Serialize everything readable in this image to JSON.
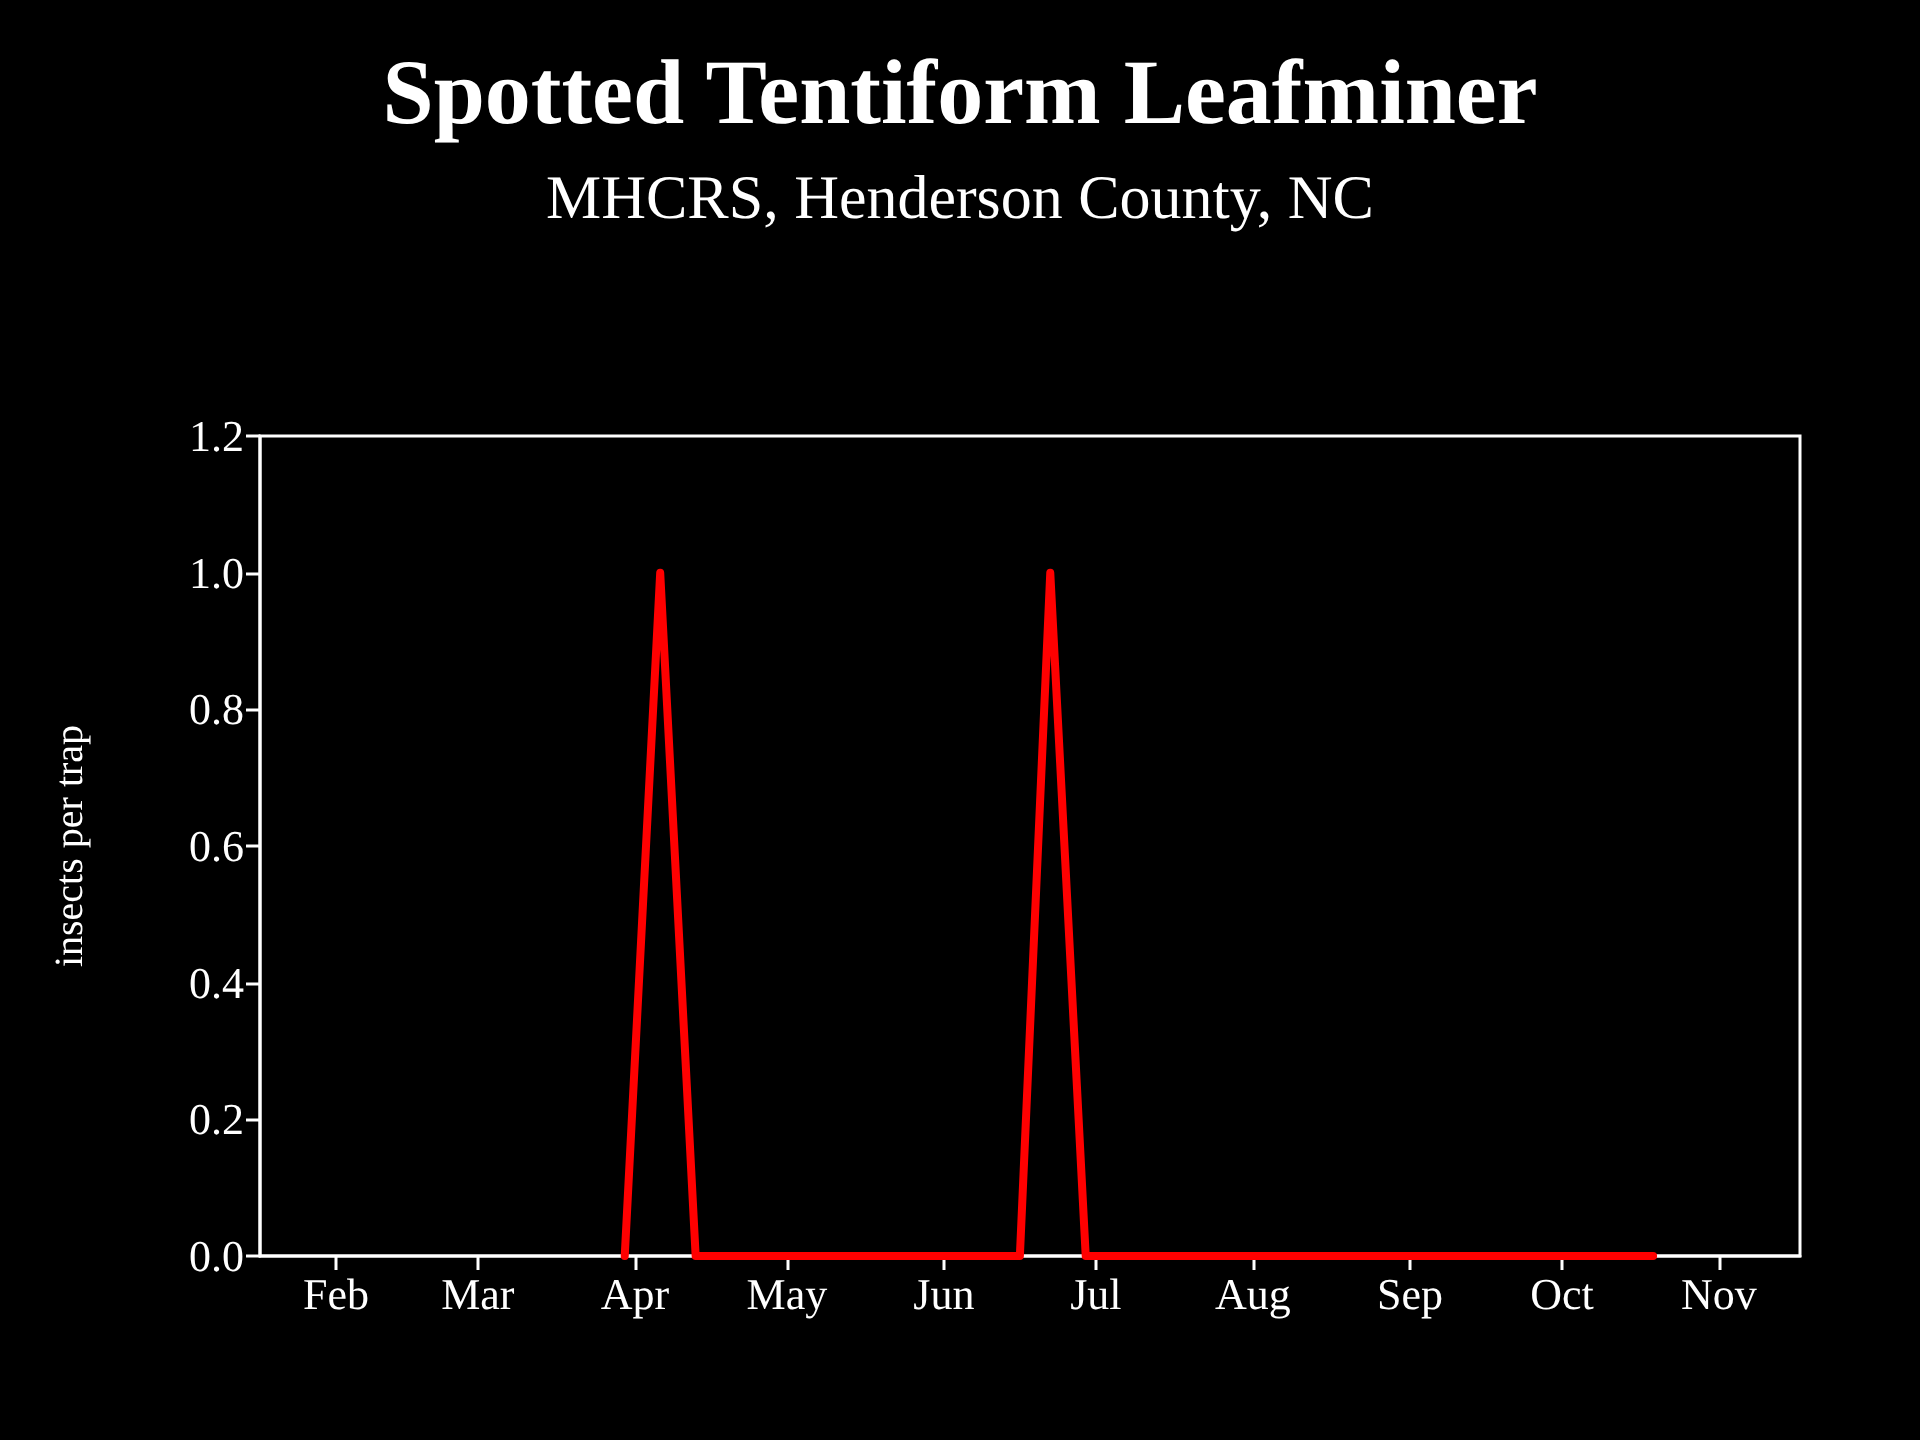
{
  "chart_data": {
    "type": "line",
    "title": "Spotted Tentiform Leafminer",
    "subtitle": "MHCRS, Henderson County, NC",
    "ylabel": "insects per trap",
    "x": [
      "--03-30",
      "--04-06",
      "--04-13",
      "--06-16",
      "--06-22",
      "--06-29",
      "--10-19"
    ],
    "series": [
      {
        "color": "#ff0000",
        "values": [
          0,
          1,
          0,
          0,
          1,
          0,
          0
        ]
      }
    ],
    "xlim": [
      "--01-17",
      "--11-17"
    ],
    "xticks": [
      {
        "value": "--02-01",
        "label": "Feb"
      },
      {
        "value": "--03-01",
        "label": "Mar"
      },
      {
        "value": "--04-01",
        "label": "Apr"
      },
      {
        "value": "--05-01",
        "label": "May"
      },
      {
        "value": "--06-01",
        "label": "Jun"
      },
      {
        "value": "--07-01",
        "label": "Jul"
      },
      {
        "value": "--08-01",
        "label": "Aug"
      },
      {
        "value": "--09-01",
        "label": "Sep"
      },
      {
        "value": "--10-01",
        "label": "Oct"
      },
      {
        "value": "--11-01",
        "label": "Nov"
      }
    ],
    "ylim": [
      0,
      1.2
    ],
    "yticks": [
      {
        "value": 0,
        "label": "0.0"
      },
      {
        "value": 0.2,
        "label": "0.2"
      },
      {
        "value": 0.4,
        "label": "0.4"
      },
      {
        "value": 0.6,
        "label": "0.6"
      },
      {
        "value": 0.8,
        "label": "0.8"
      },
      {
        "value": 1,
        "label": "1.0"
      },
      {
        "value": 1.2,
        "label": "1.2"
      }
    ],
    "grid": false,
    "marker": "none",
    "line_style": "solid"
  }
}
